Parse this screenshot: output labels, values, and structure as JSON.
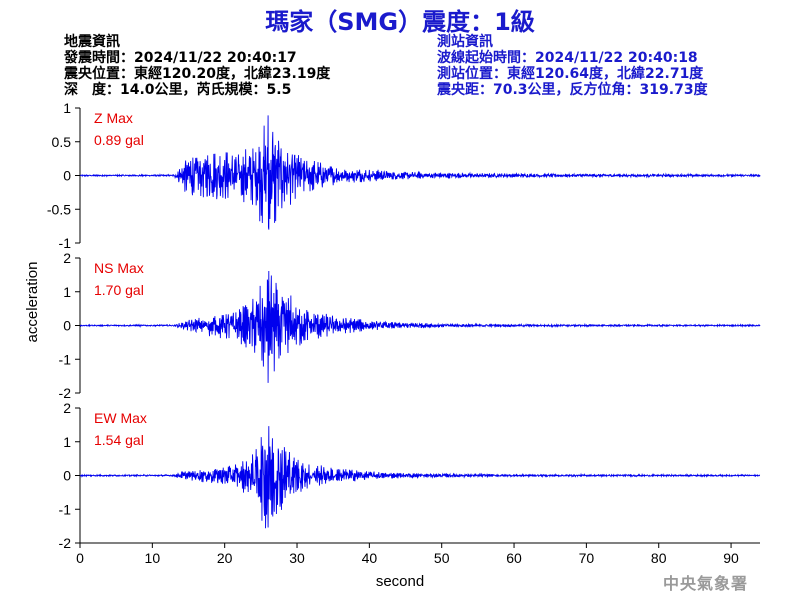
{
  "header": {
    "title": "瑪家（SMG）震度：1級",
    "quake_info": [
      "地震資訊",
      "發震時間：2024/11/22 20:40:17",
      "震央位置：東經120.20度，北緯23.19度",
      "深　度：14.0公里，芮氏規模：5.5"
    ],
    "station_info": [
      "測站資訊",
      "波線起始時間：2024/11/22 20:40:18",
      "測站位置：東經120.64度，北緯22.71度",
      "震央距：70.3公里，反方位角：319.73度"
    ]
  },
  "footer": {
    "watermark": "中央氣象署"
  },
  "colors": {
    "trace": "#0000ee",
    "label": "#e60000",
    "title": "#1a1acc"
  },
  "chart_data": {
    "type": "line",
    "xlabel": "second",
    "ylabel": "acceleration",
    "xlim": [
      0,
      94
    ],
    "xticks": [
      0,
      10,
      20,
      30,
      40,
      50,
      60,
      70,
      80,
      90
    ],
    "panels": [
      {
        "name": "Z",
        "max_label": "Z Max",
        "max_value": "0.89 gal",
        "peak": 0.89,
        "ylim": [
          -1,
          1
        ],
        "yticks": [
          1,
          0.5,
          0,
          -0.5,
          -1
        ],
        "ytick_labels": [
          "1",
          "0.5",
          "0",
          "-0.5",
          "-1"
        ],
        "envelope": [
          [
            0,
            0.01
          ],
          [
            13,
            0.012
          ],
          [
            14,
            0.15
          ],
          [
            15,
            0.33
          ],
          [
            17,
            0.3
          ],
          [
            19,
            0.35
          ],
          [
            21,
            0.3
          ],
          [
            22,
            0.3
          ],
          [
            24,
            0.4
          ],
          [
            25,
            0.6
          ],
          [
            26,
            0.89
          ],
          [
            27,
            0.7
          ],
          [
            28,
            0.5
          ],
          [
            30,
            0.28
          ],
          [
            33,
            0.18
          ],
          [
            36,
            0.1
          ],
          [
            40,
            0.08
          ],
          [
            45,
            0.05
          ],
          [
            55,
            0.03
          ],
          [
            70,
            0.02
          ],
          [
            94,
            0.015
          ]
        ]
      },
      {
        "name": "NS",
        "max_label": "NS Max",
        "max_value": "1.70 gal",
        "peak": 1.7,
        "ylim": [
          -2,
          2
        ],
        "yticks": [
          2,
          1,
          0,
          -1,
          -2
        ],
        "ytick_labels": [
          "2",
          "1",
          "0",
          "-1",
          "-2"
        ],
        "envelope": [
          [
            0,
            0.02
          ],
          [
            13,
            0.02
          ],
          [
            14,
            0.1
          ],
          [
            16,
            0.2
          ],
          [
            18,
            0.3
          ],
          [
            20,
            0.35
          ],
          [
            22,
            0.45
          ],
          [
            24,
            0.7
          ],
          [
            25,
            1.1
          ],
          [
            26,
            1.7
          ],
          [
            27,
            1.2
          ],
          [
            28,
            1.0
          ],
          [
            30,
            0.6
          ],
          [
            32,
            0.4
          ],
          [
            35,
            0.25
          ],
          [
            38,
            0.18
          ],
          [
            42,
            0.1
          ],
          [
            50,
            0.05
          ],
          [
            60,
            0.03
          ],
          [
            94,
            0.02
          ]
        ]
      },
      {
        "name": "EW",
        "max_label": "EW Max",
        "max_value": "1.54 gal",
        "peak": 1.54,
        "ylim": [
          -2,
          2
        ],
        "yticks": [
          2,
          1,
          0,
          -1,
          -2
        ],
        "ytick_labels": [
          "2",
          "1",
          "0",
          "-1",
          "-2"
        ],
        "envelope": [
          [
            0,
            0.02
          ],
          [
            13,
            0.02
          ],
          [
            14,
            0.1
          ],
          [
            16,
            0.15
          ],
          [
            18,
            0.2
          ],
          [
            20,
            0.25
          ],
          [
            22,
            0.35
          ],
          [
            24,
            0.6
          ],
          [
            25,
            1.1
          ],
          [
            26,
            1.54
          ],
          [
            27,
            1.1
          ],
          [
            28,
            0.9
          ],
          [
            30,
            0.5
          ],
          [
            32,
            0.3
          ],
          [
            35,
            0.2
          ],
          [
            38,
            0.15
          ],
          [
            42,
            0.08
          ],
          [
            50,
            0.05
          ],
          [
            60,
            0.03
          ],
          [
            94,
            0.02
          ]
        ]
      }
    ]
  }
}
